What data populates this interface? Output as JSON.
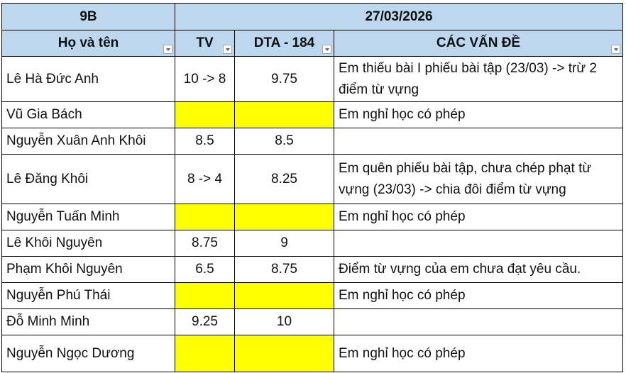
{
  "header": {
    "class": "9B",
    "date": "27/03/2026"
  },
  "columns": [
    "Họ và tên",
    "TV",
    "DTA - 184",
    "CÁC VẤN ĐỀ"
  ],
  "rows": [
    {
      "name": "Lê Hà Đức Anh",
      "tv": "10 -> 8",
      "dta": "9.75",
      "note": "Em thiếu bài I phiếu bài tập (23/03) -> trừ 2 điểm từ vựng",
      "absent": false
    },
    {
      "name": "Vũ Gia Bách",
      "tv": "",
      "dta": "",
      "note": "Em nghỉ học có phép",
      "absent": true
    },
    {
      "name": "Nguyễn Xuân Anh Khôi",
      "tv": "8.5",
      "dta": "8.5",
      "note": "",
      "absent": false
    },
    {
      "name": "Lê Đăng Khôi",
      "tv": "8 -> 4",
      "dta": "8.25",
      "note": "Em quên phiếu bài tập, chưa chép phạt từ vựng (23/03) -> chia đôi điểm từ vựng",
      "absent": false
    },
    {
      "name": "Nguyễn Tuấn Minh",
      "tv": "",
      "dta": "",
      "note": "Em nghỉ học có phép",
      "absent": true
    },
    {
      "name": "Lê Khôi Nguyên",
      "tv": "8.75",
      "dta": "9",
      "note": "",
      "absent": false
    },
    {
      "name": "Phạm Khôi Nguyên",
      "tv": "6.5",
      "dta": "8.75",
      "note": "Điểm từ vựng của em chưa đạt yêu cầu.",
      "absent": false
    },
    {
      "name": "Nguyễn Phú Thái",
      "tv": "",
      "dta": "",
      "note": "Em nghỉ học có phép",
      "absent": true
    },
    {
      "name": "Đỗ Minh Minh",
      "tv": "9.25",
      "dta": "10",
      "note": "",
      "absent": false
    },
    {
      "name": "Nguyễn Ngọc Dương",
      "tv": "",
      "dta": "",
      "note": "Em nghỉ học có phép",
      "absent": true
    }
  ],
  "colors": {
    "header_bg": "#bdd7ee",
    "absent_fill": "#ffff00"
  }
}
